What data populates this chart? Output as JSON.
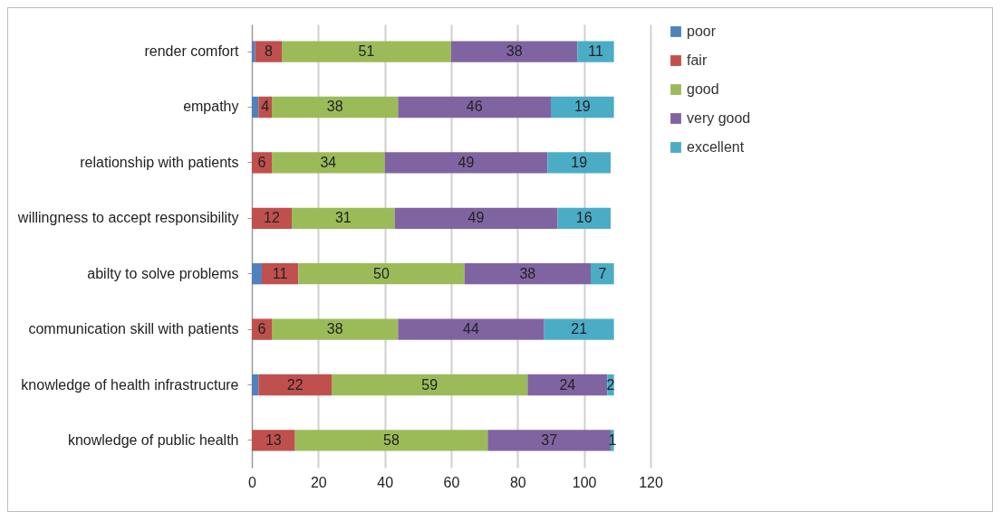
{
  "chart_data": {
    "type": "bar",
    "orientation": "horizontal",
    "stacked": true,
    "categories": [
      "render comfort",
      "empathy",
      "relationship with patients",
      "willingness to accept responsibility",
      "abilty to solve problems",
      "communication skill with patients",
      "knowledge of health infrastructure",
      "knowledge of public health"
    ],
    "series": [
      {
        "name": "poor",
        "color": "#4f81bd",
        "values": [
          1,
          2,
          null,
          null,
          3,
          null,
          2,
          null
        ],
        "value_labels": [
          null,
          null,
          null,
          null,
          null,
          null,
          null,
          null
        ]
      },
      {
        "name": "fair",
        "color": "#c0504d",
        "values": [
          8,
          4,
          6,
          12,
          11,
          6,
          22,
          13
        ],
        "value_labels": [
          "8",
          "4",
          "6",
          "12",
          "11",
          "6",
          "22",
          "13"
        ]
      },
      {
        "name": "good",
        "color": "#9bbb59",
        "values": [
          51,
          38,
          34,
          31,
          50,
          38,
          59,
          58
        ],
        "value_labels": [
          "51",
          "38",
          "34",
          "31",
          "50",
          "38",
          "59",
          "58"
        ]
      },
      {
        "name": "very good",
        "color": "#8064a2",
        "values": [
          38,
          46,
          49,
          49,
          38,
          44,
          24,
          37
        ],
        "value_labels": [
          "38",
          "46",
          "49",
          "49",
          "38",
          "44",
          "24",
          "37"
        ]
      },
      {
        "name": "excellent",
        "color": "#4bacc6",
        "values": [
          11,
          19,
          19,
          16,
          7,
          21,
          2,
          1
        ],
        "value_labels": [
          "11",
          "19",
          "19",
          "16",
          "7",
          "21",
          "2",
          "1"
        ]
      }
    ],
    "xlim": [
      0,
      120
    ],
    "xticks": [
      0,
      20,
      40,
      60,
      80,
      100,
      120
    ],
    "grid": "x",
    "legend": "right"
  }
}
